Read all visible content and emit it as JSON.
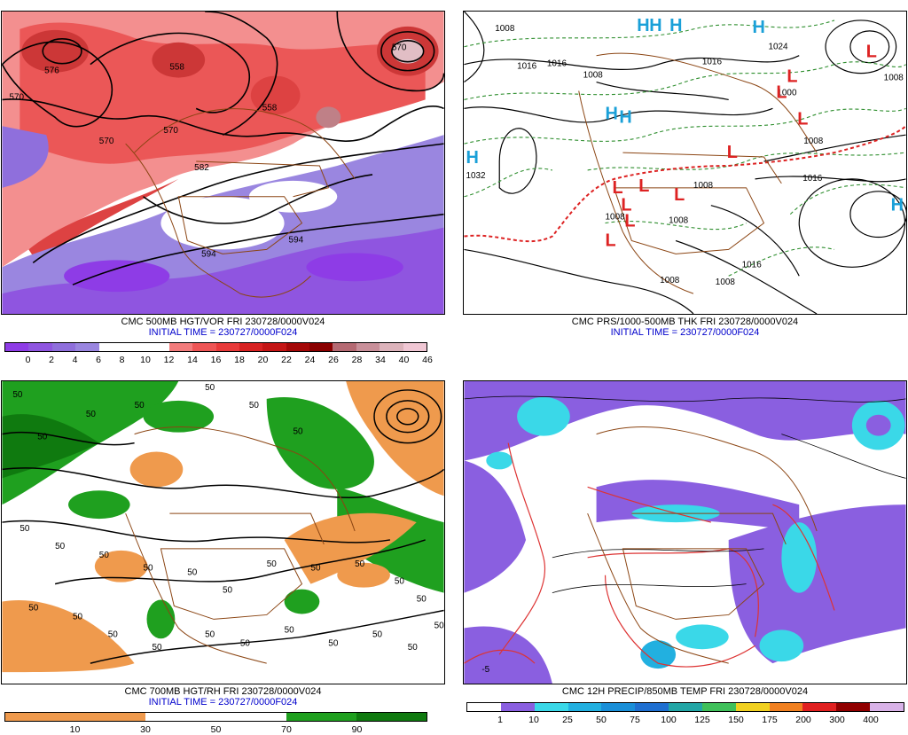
{
  "panels": [
    {
      "id": "vort500",
      "title": "CMC 500MB HGT/VOR FRI 230728/0000V024",
      "init": "INITIAL TIME = 230727/0000F024",
      "colorbar": {
        "colors": [
          "#8e3ce6",
          "#8f55e0",
          "#8f6fdc",
          "#9a86e0",
          "#ffffff",
          "#ffffff",
          "#ffffff",
          "#f27c7c",
          "#ee5555",
          "#e83a3a",
          "#d82222",
          "#c41515",
          "#a40808",
          "#8a0000",
          "#b56a73",
          "#c9909a",
          "#dcb3bb",
          "#f0c7d4"
        ],
        "ticks": [
          "0",
          "2",
          "4",
          "6",
          "8",
          "10",
          "12",
          "14",
          "16",
          "18",
          "20",
          "22",
          "24",
          "26",
          "28",
          "34",
          "40",
          "46"
        ]
      },
      "contour_labels": [
        "576",
        "570",
        "558",
        "570",
        "570",
        "582",
        "594",
        "594",
        "570",
        "558"
      ]
    },
    {
      "id": "prs_thk",
      "title": "CMC PRS/1000-500MB THK FRI 230728/0000V024",
      "init": "INITIAL TIME = 230727/0000F024",
      "highs": [
        "H",
        "H",
        "H",
        "H",
        "H",
        "H",
        "H",
        "H"
      ],
      "lows": [
        "L",
        "L",
        "L",
        "L",
        "L",
        "L",
        "L",
        "L",
        "L",
        "L",
        "L"
      ],
      "contour_labels": [
        "1008",
        "1016",
        "1008",
        "1016",
        "1024",
        "1008",
        "1000",
        "1008",
        "1016",
        "1032",
        "1008",
        "1008",
        "1008",
        "1008",
        "1016",
        "1008",
        "1016"
      ],
      "colors": {
        "high": "#1aa0d8",
        "low": "#dd2222",
        "thickness": "#2f8f2f",
        "line_540": "#dd2222"
      }
    },
    {
      "id": "rh700",
      "title": "CMC 700MB HGT/RH FRI 230728/0000V024",
      "init": "INITIAL TIME = 230727/0000F024",
      "colorbar": {
        "colors": [
          "#ef9a4d",
          "#ef9a4d",
          "#ffffff",
          "#ffffff",
          "#1fa01f",
          "#0f7a0f"
        ],
        "ticks": [
          "10",
          "30",
          "50",
          "70",
          "90"
        ]
      },
      "contour_labels": [
        "50",
        "50",
        "50",
        "50",
        "50",
        "50",
        "50",
        "50",
        "50",
        "50",
        "50",
        "50",
        "50",
        "50",
        "50",
        "50",
        "50",
        "50",
        "50",
        "50",
        "50",
        "50",
        "50",
        "50",
        "50",
        "50",
        "50",
        "50",
        "50"
      ]
    },
    {
      "id": "precip850",
      "title": "CMC 12H PRECIP/850MB TEMP FRI 230728/0000V024",
      "colorbar": {
        "colors": [
          "#ffffff",
          "#8a5fe0",
          "#3ad8e8",
          "#22b0e0",
          "#1a8fd8",
          "#1f6fd0",
          "#22a6a6",
          "#3fc05a",
          "#f0d020",
          "#f08020",
          "#e02020",
          "#900000",
          "#d9b3e8"
        ],
        "ticks": [
          "1",
          "10",
          "25",
          "50",
          "75",
          "100",
          "125",
          "150",
          "175",
          "200",
          "300",
          "400"
        ]
      },
      "contour_labels": [
        "-5"
      ]
    }
  ]
}
